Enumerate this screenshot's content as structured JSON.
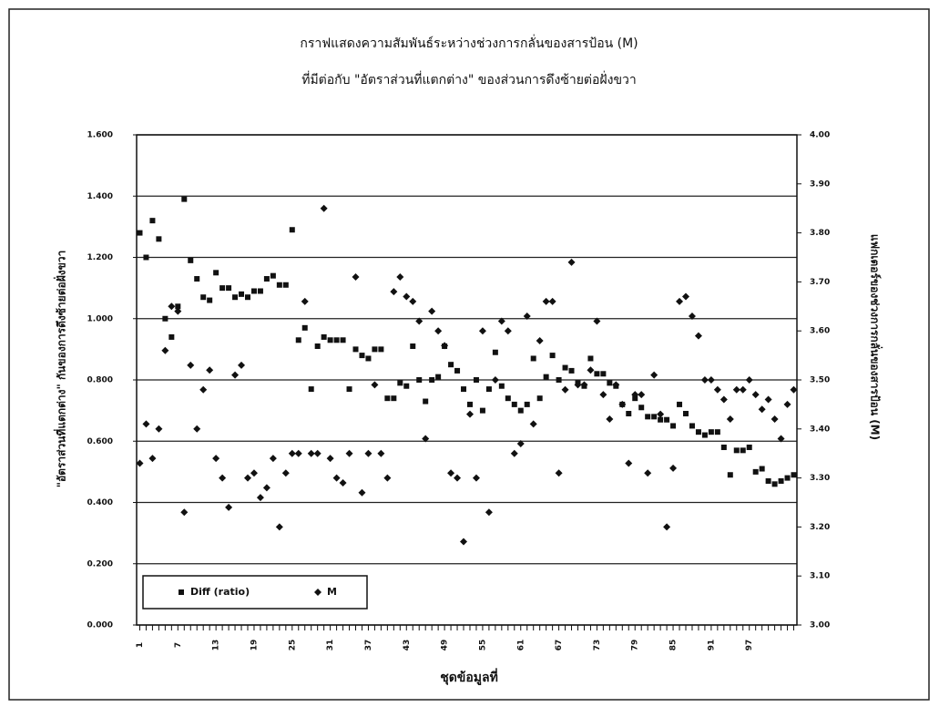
{
  "chart_data": {
    "type": "scatter",
    "title": "กราฟแสดงความสัมพันธ์ระหว่างช่วงการกลั่นของสารป้อน (M)",
    "subtitle": "ที่มีต่อกับ \"อัตราส่วนที่แตกต่าง\" ของส่วนการดึงซ้ายต่อฝั่งขวา",
    "x_label": "ชุดข้อมูลที่",
    "y_label": "\"อัตราส่วนที่แตกต่าง\" กันของการดึงซ้ายต่อฝั่งขวา",
    "y2_label": "แฟกเตอร์ของช่วงการกลั่นของสารป้อน (M)",
    "x": [
      1,
      2,
      3,
      4,
      5,
      6,
      7,
      8,
      9,
      10,
      11,
      12,
      13,
      14,
      15,
      16,
      17,
      18,
      19,
      20,
      21,
      22,
      23,
      24,
      25,
      26,
      27,
      28,
      29,
      30,
      31,
      32,
      33,
      34,
      35,
      36,
      37,
      38,
      39,
      40,
      41,
      42,
      43,
      44,
      45,
      46,
      47,
      48,
      49,
      50,
      51,
      52,
      53,
      54,
      55,
      56,
      57,
      58,
      59,
      60,
      61,
      62,
      63,
      64,
      65,
      66,
      67,
      68,
      69,
      70,
      71,
      72,
      73,
      74,
      75,
      76,
      77,
      78,
      79,
      80,
      81,
      82,
      83,
      84,
      85,
      86,
      87,
      88,
      89,
      90,
      91,
      92,
      93,
      94,
      95,
      96,
      97,
      98,
      99,
      100,
      101,
      102,
      103,
      104
    ],
    "xlim": [
      0.5,
      104.5
    ],
    "xticks": [
      1,
      7,
      13,
      19,
      25,
      31,
      37,
      43,
      49,
      55,
      61,
      67,
      73,
      79,
      85,
      91,
      97
    ],
    "ylim": [
      0,
      1.6
    ],
    "yticks": [
      {
        "value": 0,
        "label": "0.000"
      },
      {
        "value": 0.2,
        "label": "0.200"
      },
      {
        "value": 0.4,
        "label": "0.400"
      },
      {
        "value": 0.6,
        "label": "0.600"
      },
      {
        "value": 0.8,
        "label": "0.800"
      },
      {
        "value": 1,
        "label": "1.000"
      },
      {
        "value": 1.2,
        "label": "1.200"
      },
      {
        "value": 1.4,
        "label": "1.400"
      },
      {
        "value": 1.6,
        "label": "1.600"
      }
    ],
    "y2lim": [
      3,
      4
    ],
    "y2ticks": [
      {
        "value": 3,
        "label": "3.00"
      },
      {
        "value": 3.1,
        "label": "3.10"
      },
      {
        "value": 3.2,
        "label": "3.20"
      },
      {
        "value": 3.3,
        "label": "3.30"
      },
      {
        "value": 3.4,
        "label": "3.40"
      },
      {
        "value": 3.5,
        "label": "3.50"
      },
      {
        "value": 3.6,
        "label": "3.60"
      },
      {
        "value": 3.7,
        "label": "3.70"
      },
      {
        "value": 3.8,
        "label": "3.80"
      },
      {
        "value": 3.9,
        "label": "3.90"
      },
      {
        "value": 4,
        "label": "4.00"
      }
    ],
    "grid": true,
    "legend": "bottom-left",
    "series": [
      {
        "name": "Diff (ratio)",
        "color": "#111111",
        "marker": "square",
        "values": [
          1.28,
          1.2,
          1.32,
          1.26,
          1.0,
          0.94,
          1.04,
          1.39,
          1.19,
          1.13,
          1.07,
          1.06,
          1.15,
          1.1,
          1.1,
          1.07,
          1.08,
          1.07,
          1.09,
          1.09,
          1.13,
          1.14,
          1.11,
          1.11,
          1.29,
          0.93,
          0.97,
          0.77,
          0.91,
          0.94,
          0.93,
          0.93,
          0.93,
          0.77,
          0.9,
          0.88,
          0.87,
          0.9,
          0.9,
          0.74,
          0.74,
          0.79,
          0.78,
          0.91,
          0.8,
          0.73,
          0.8,
          0.81,
          0.91,
          0.85,
          0.83,
          0.77,
          0.72,
          0.8,
          0.7,
          0.77,
          0.89,
          0.78,
          0.74,
          0.72,
          0.7,
          0.72,
          0.87,
          0.74,
          0.81,
          0.88,
          0.8,
          0.84,
          0.83,
          0.79,
          0.78,
          0.87,
          0.82,
          0.82,
          0.79,
          0.78,
          0.72,
          0.69,
          0.74,
          0.71,
          0.68,
          0.68,
          0.67,
          0.67,
          0.65,
          0.72,
          0.69,
          0.65,
          0.63,
          0.62,
          0.63,
          0.63,
          0.58,
          0.49,
          0.57,
          0.57,
          0.58,
          0.5,
          0.51,
          0.47,
          0.46,
          0.47,
          0.48,
          0.49
        ]
      },
      {
        "name": "M",
        "color": "#111111",
        "marker": "diamond",
        "axis": "y2",
        "values": [
          3.33,
          3.41,
          3.34,
          3.4,
          3.56,
          3.65,
          3.64,
          3.23,
          3.53,
          3.4,
          3.48,
          3.52,
          3.34,
          3.3,
          3.24,
          3.51,
          3.53,
          3.3,
          3.31,
          3.26,
          3.28,
          3.34,
          3.2,
          3.31,
          3.35,
          3.35,
          3.66,
          3.35,
          3.35,
          3.85,
          3.34,
          3.3,
          3.29,
          3.35,
          3.71,
          3.27,
          3.35,
          3.49,
          3.35,
          3.3,
          3.68,
          3.71,
          3.67,
          3.66,
          3.62,
          3.38,
          3.64,
          3.6,
          3.57,
          3.31,
          3.3,
          3.17,
          3.43,
          3.3,
          3.6,
          3.23,
          3.5,
          3.62,
          3.6,
          3.35,
          3.37,
          3.63,
          3.41,
          3.58,
          3.66,
          3.66,
          3.31,
          3.48,
          3.74,
          3.49,
          3.49,
          3.52,
          3.62,
          3.47,
          3.42,
          3.49,
          3.45,
          3.33,
          3.47,
          3.47,
          3.31,
          3.51,
          3.43,
          3.2,
          3.32,
          3.66,
          3.67,
          3.63,
          3.59,
          3.5,
          3.5,
          3.48,
          3.46,
          3.42,
          3.48,
          3.48,
          3.5,
          3.47,
          3.44,
          3.46,
          3.42,
          3.38,
          3.45,
          3.48
        ]
      }
    ]
  }
}
